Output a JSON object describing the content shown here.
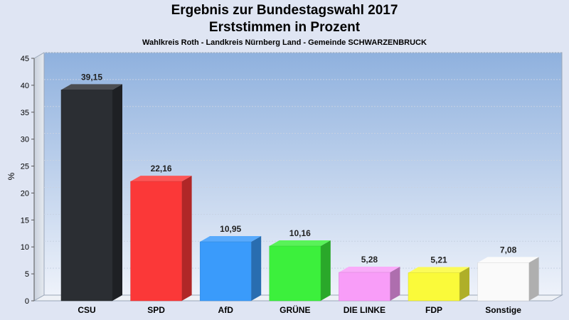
{
  "chart_data": {
    "type": "bar",
    "title": "Ergebnis zur Bundestagswahl 2017",
    "subtitle": "Erststimmen in Prozent",
    "caption": "Wahlkreis Roth - Landkreis Nürnberg Land - Gemeinde SCHWARZENBRUCK",
    "ylabel": "%",
    "xlabel": "",
    "ylim": [
      0,
      45
    ],
    "yticks": [
      0,
      5,
      10,
      15,
      20,
      25,
      30,
      35,
      40,
      45
    ],
    "grid": true,
    "categories": [
      "CSU",
      "SPD",
      "AfD",
      "GRÜNE",
      "DIE LINKE",
      "FDP",
      "Sonstige"
    ],
    "values": [
      39.15,
      22.16,
      10.95,
      10.16,
      5.28,
      5.21,
      7.08
    ],
    "value_labels": [
      "39,15",
      "22,16",
      "10,95",
      "10,16",
      "5,28",
      "5,21",
      "7,08"
    ],
    "colors": [
      "#2b2e33",
      "#fb3838",
      "#3a9bfb",
      "#3cf03c",
      "#f89df8",
      "#fafa3a",
      "#fafafa"
    ]
  }
}
